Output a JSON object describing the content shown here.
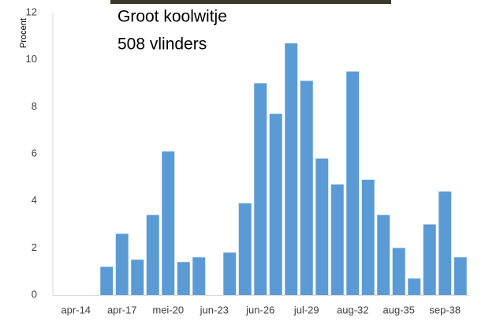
{
  "chart_data": {
    "type": "bar",
    "title": "Groot koolwitje",
    "subtitle": "508 vlinders",
    "y_label": "Procent",
    "categories": [
      null,
      "apr-14",
      null,
      null,
      "apr-17",
      null,
      null,
      "mei-20",
      null,
      null,
      "jun-23",
      null,
      null,
      "jun-26",
      null,
      null,
      "jul-29",
      null,
      null,
      "aug-32",
      null,
      null,
      "aug-35",
      null,
      null,
      "sep-38",
      null
    ],
    "values": [
      0,
      0,
      0,
      1.2,
      2.6,
      1.5,
      3.4,
      6.1,
      1.4,
      1.6,
      0,
      1.8,
      3.9,
      9.0,
      7.7,
      10.7,
      9.1,
      5.8,
      4.7,
      9.5,
      4.9,
      3.4,
      2.0,
      0.7,
      3.0,
      4.4,
      1.6
    ],
    "color": "#5b9bd5",
    "ylim": [
      0,
      12
    ],
    "yticks": [
      0,
      2,
      4,
      6,
      8,
      10,
      12
    ],
    "grid": false
  }
}
